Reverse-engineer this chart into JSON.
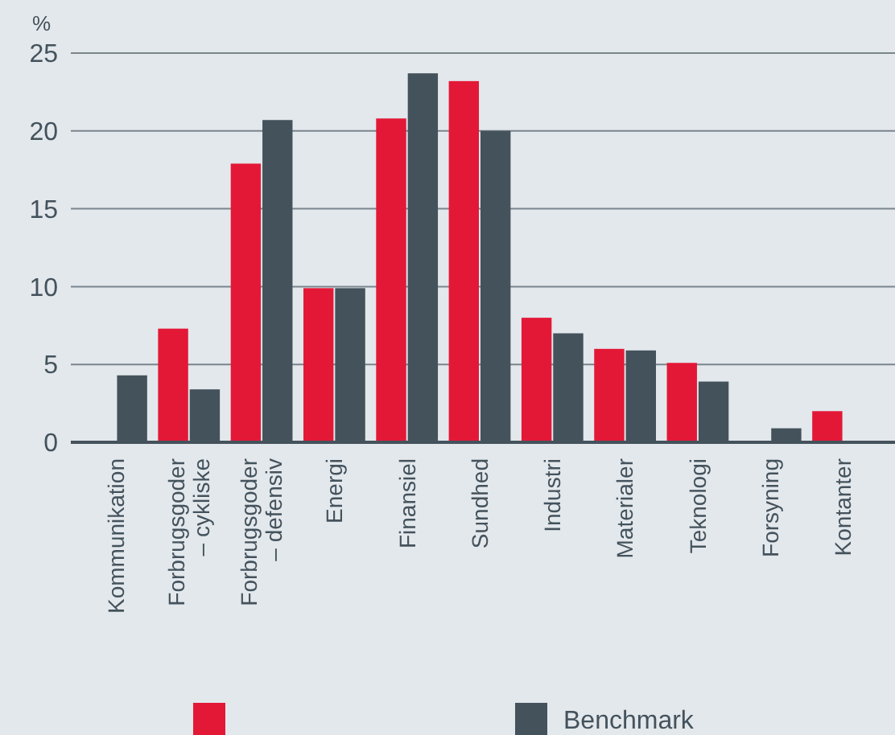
{
  "chart_data": {
    "type": "bar",
    "ylabel": "%",
    "categories": [
      "Kommunikation",
      "Forbrugsgoder\n– cykliske",
      "Forbrugsgoder\n– defensiv",
      "Energi",
      "Finansiel",
      "Sundhed",
      "Industri",
      "Materialer",
      "Teknologi",
      "Forsyning",
      "Kontanter"
    ],
    "series": [
      {
        "color": "#e31837",
        "values": [
          null,
          7.3,
          17.9,
          9.9,
          20.8,
          23.2,
          8.0,
          6.0,
          5.1,
          null,
          2.0
        ]
      },
      {
        "name": "Benchmark",
        "color": "#44525c",
        "values": [
          4.3,
          3.4,
          20.7,
          9.9,
          23.7,
          20.0,
          7.0,
          5.9,
          3.9,
          0.9,
          null
        ]
      }
    ],
    "ylim": [
      0,
      25
    ],
    "yticks": [
      0,
      5,
      10,
      15,
      20,
      25
    ],
    "grid": "y",
    "legend": "bottom"
  }
}
